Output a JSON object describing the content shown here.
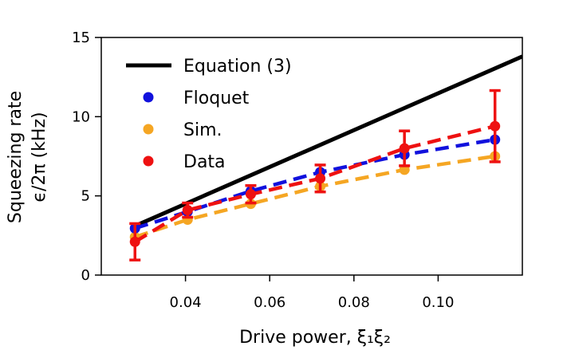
{
  "chart_data": {
    "type": "line",
    "xlabel": "Drive power, ξ₁ξ₂",
    "ylabel_line1": "Squeezing rate",
    "ylabel_line2": "ϵ/2π (kHz)",
    "xlim": [
      0.02,
      0.12
    ],
    "ylim": [
      0,
      15
    ],
    "xticks": [
      0.04,
      0.06,
      0.08,
      0.1
    ],
    "xtick_labels": [
      "0.04",
      "0.06",
      "0.08",
      "0.10"
    ],
    "yticks": [
      0,
      5,
      10,
      15
    ],
    "ytick_labels": [
      "0",
      "5",
      "10",
      "15"
    ],
    "grid": false,
    "legend_position": "top-left",
    "series": [
      {
        "name": "Equation (3)",
        "style": "solid-line",
        "color": "#000000",
        "x": [
          0.028,
          0.12
        ],
        "y": [
          3.1,
          13.8
        ]
      },
      {
        "name": "Floquet",
        "style": "dashed-markers",
        "color": "#1111dd",
        "x": [
          0.028,
          0.0405,
          0.0555,
          0.072,
          0.092,
          0.1135
        ],
        "y": [
          2.95,
          4.0,
          5.3,
          6.5,
          7.6,
          8.55
        ]
      },
      {
        "name": "Sim.",
        "style": "dashed-markers",
        "color": "#f5a623",
        "x": [
          0.028,
          0.0405,
          0.0555,
          0.072,
          0.092,
          0.1135
        ],
        "y": [
          2.4,
          3.5,
          4.5,
          5.6,
          6.65,
          7.5
        ]
      },
      {
        "name": "Data",
        "style": "dashed-markers-errorbars",
        "color": "#ee1111",
        "x": [
          0.028,
          0.0405,
          0.0555,
          0.072,
          0.092,
          0.1135
        ],
        "y": [
          2.1,
          4.1,
          5.1,
          6.1,
          8.0,
          9.4
        ],
        "yerr": [
          1.15,
          0.45,
          0.55,
          0.85,
          1.1,
          2.25
        ]
      }
    ]
  }
}
